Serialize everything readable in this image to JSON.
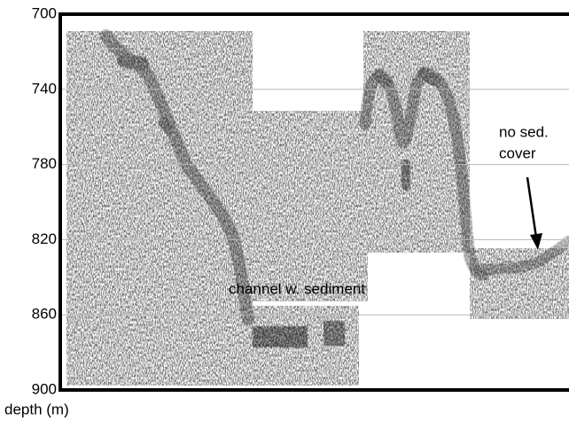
{
  "chart_data": {
    "type": "echogram",
    "y_label": "depth (m)",
    "ylim": [
      900,
      700
    ],
    "yticks": [
      700,
      740,
      780,
      820,
      860,
      900
    ],
    "grid": true,
    "annotations": [
      "channel w. sediment",
      "no sed.",
      "cover"
    ]
  }
}
